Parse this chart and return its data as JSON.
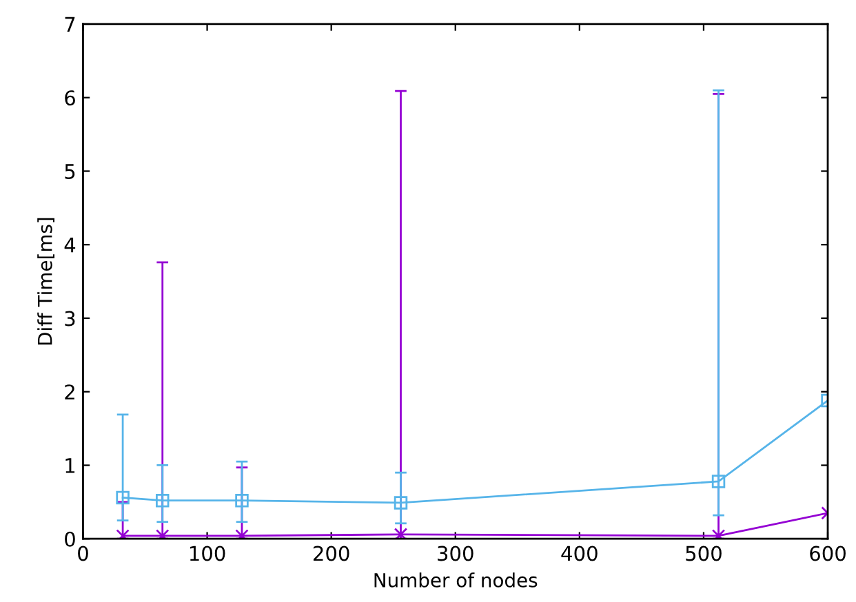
{
  "chart_data": {
    "type": "line",
    "xlabel": "Number of nodes",
    "ylabel": "Diff Time[ms]",
    "xlim": [
      0,
      600
    ],
    "xticks": [
      0,
      100,
      200,
      300,
      400,
      500,
      600
    ],
    "ylim": [
      0,
      7
    ],
    "yticks": [
      0,
      1,
      2,
      3,
      4,
      5,
      6,
      7
    ],
    "grid": false,
    "series": [
      {
        "color": "#9400d3",
        "marker": "cross",
        "x": [
          32,
          64,
          128,
          256,
          512,
          600
        ],
        "values": [
          0.04,
          0.04,
          0.04,
          0.06,
          0.04,
          0.35
        ],
        "errors": [
          [
            0,
            0.5
          ],
          [
            0,
            3.76
          ],
          [
            0,
            0.97
          ],
          [
            0,
            6.09
          ],
          [
            0,
            6.05
          ],
          null
        ]
      },
      {
        "color": "#56b4e9",
        "marker": "square",
        "x": [
          32,
          64,
          128,
          256,
          512,
          600
        ],
        "values": [
          0.56,
          0.52,
          0.52,
          0.49,
          0.78,
          1.88
        ],
        "errors": [
          [
            0.25,
            1.69
          ],
          [
            0.23,
            1.0
          ],
          [
            0.23,
            1.05
          ],
          [
            0.21,
            0.9
          ],
          [
            0.32,
            6.1
          ],
          null
        ]
      }
    ]
  }
}
